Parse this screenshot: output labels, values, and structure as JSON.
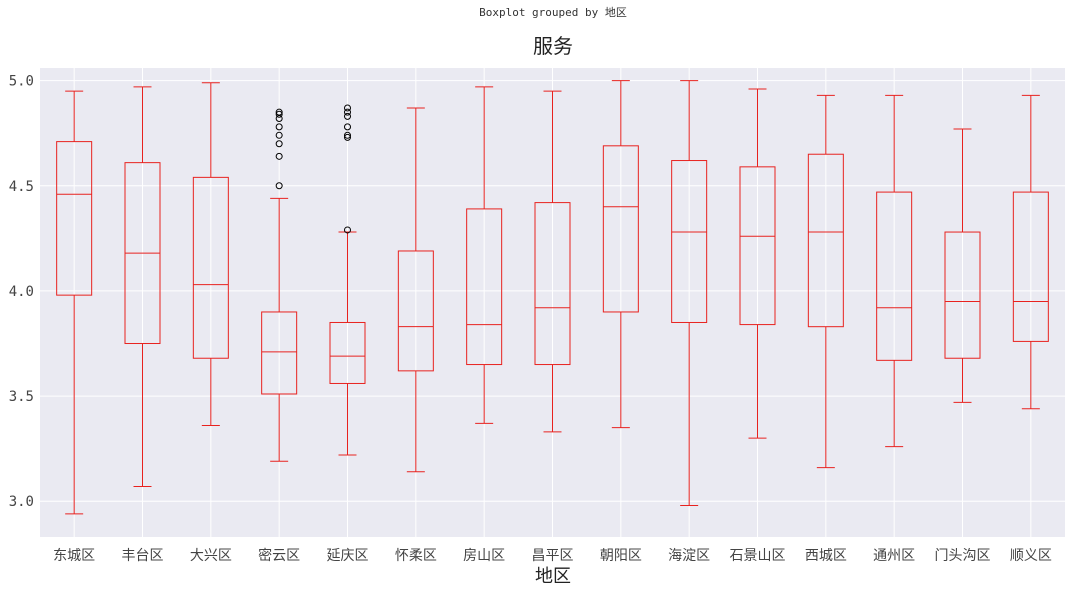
{
  "chart_data": {
    "type": "boxplot",
    "suptitle": "Boxplot grouped by 地区",
    "title": "服务",
    "xlabel": "地区",
    "ylabel": "",
    "ylim": [
      2.83,
      5.06
    ],
    "yticks": [
      "3.0",
      "3.5",
      "4.0",
      "4.5",
      "5.0"
    ],
    "grid": true,
    "colors": {
      "background": "#eaeaf2",
      "grid": "#ffffff",
      "box": "#e8221f",
      "flier": "#000000"
    },
    "categories": [
      "东城区",
      "丰台区",
      "大兴区",
      "密云区",
      "延庆区",
      "怀柔区",
      "房山区",
      "昌平区",
      "朝阳区",
      "海淀区",
      "石景山区",
      "西城区",
      "通州区",
      "门头沟区",
      "顺义区"
    ],
    "boxes": [
      {
        "min": 2.94,
        "q1": 3.98,
        "median": 4.46,
        "q3": 4.71,
        "max": 4.95,
        "fliers": []
      },
      {
        "min": 3.07,
        "q1": 3.75,
        "median": 4.18,
        "q3": 4.61,
        "max": 4.97,
        "fliers": []
      },
      {
        "min": 3.36,
        "q1": 3.68,
        "median": 4.03,
        "q3": 4.54,
        "max": 4.99,
        "fliers": []
      },
      {
        "min": 3.19,
        "q1": 3.51,
        "median": 3.71,
        "q3": 3.9,
        "max": 4.44,
        "fliers": [
          4.5,
          4.64,
          4.7,
          4.74,
          4.78,
          4.82,
          4.84,
          4.85
        ]
      },
      {
        "min": 3.22,
        "q1": 3.56,
        "median": 3.69,
        "q3": 3.85,
        "max": 4.28,
        "fliers": [
          4.29,
          4.73,
          4.74,
          4.78,
          4.83,
          4.85,
          4.87
        ]
      },
      {
        "min": 3.14,
        "q1": 3.62,
        "median": 3.83,
        "q3": 4.19,
        "max": 4.87,
        "fliers": []
      },
      {
        "min": 3.37,
        "q1": 3.65,
        "median": 3.84,
        "q3": 4.39,
        "max": 4.97,
        "fliers": []
      },
      {
        "min": 3.33,
        "q1": 3.65,
        "median": 3.92,
        "q3": 4.42,
        "max": 4.95,
        "fliers": []
      },
      {
        "min": 3.35,
        "q1": 3.9,
        "median": 4.4,
        "q3": 4.69,
        "max": 5.0,
        "fliers": []
      },
      {
        "min": 2.98,
        "q1": 3.85,
        "median": 4.28,
        "q3": 4.62,
        "max": 5.0,
        "fliers": []
      },
      {
        "min": 3.3,
        "q1": 3.84,
        "median": 4.26,
        "q3": 4.59,
        "max": 4.96,
        "fliers": []
      },
      {
        "min": 3.16,
        "q1": 3.83,
        "median": 4.28,
        "q3": 4.65,
        "max": 4.93,
        "fliers": []
      },
      {
        "min": 3.26,
        "q1": 3.67,
        "median": 3.92,
        "q3": 4.47,
        "max": 4.93,
        "fliers": []
      },
      {
        "min": 3.47,
        "q1": 3.68,
        "median": 3.95,
        "q3": 4.28,
        "max": 4.77,
        "fliers": []
      },
      {
        "min": 3.44,
        "q1": 3.76,
        "median": 3.95,
        "q3": 4.47,
        "max": 4.93,
        "fliers": []
      }
    ]
  }
}
